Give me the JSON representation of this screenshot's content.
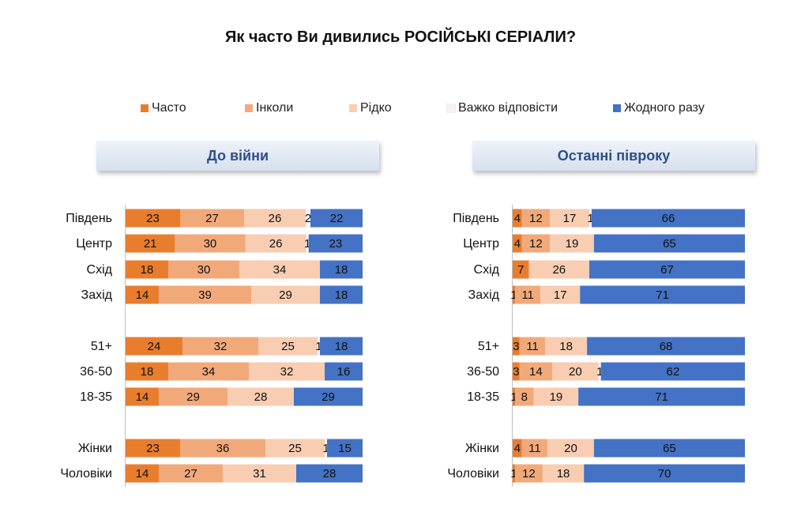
{
  "title": "Як часто Ви дивились РОСІЙСЬКІ СЕРІАЛИ?",
  "legend": [
    {
      "label": "Часто",
      "color": "#e97d2e"
    },
    {
      "label": "Інколи",
      "color": "#f2a97a"
    },
    {
      "label": "Рідко",
      "color": "#f8cdb1"
    },
    {
      "label": "Важко відповісти",
      "color": "#f7f3f0"
    },
    {
      "label": "Жодного разу",
      "color": "#4472c4"
    }
  ],
  "panels": {
    "left": {
      "title": "До війни"
    },
    "right": {
      "title": "Останні півроку"
    }
  },
  "chart_data": [
    {
      "type": "bar",
      "orientation": "horizontal",
      "stacked": true,
      "title": "До війни",
      "categories": [
        "Південь",
        "Центр",
        "Схід",
        "Захід",
        "51+",
        "36-50",
        "18-35",
        "Жінки",
        "Чоловіки"
      ],
      "series": [
        {
          "name": "Часто",
          "values": [
            23,
            21,
            18,
            14,
            24,
            18,
            14,
            23,
            14
          ]
        },
        {
          "name": "Інколи",
          "values": [
            27,
            30,
            30,
            39,
            32,
            34,
            29,
            36,
            27
          ]
        },
        {
          "name": "Рідко",
          "values": [
            26,
            26,
            34,
            29,
            25,
            32,
            28,
            25,
            31
          ]
        },
        {
          "name": "Важко відповісти",
          "values": [
            2,
            1,
            0,
            0,
            1,
            0,
            0,
            1,
            0
          ]
        },
        {
          "name": "Жодного разу",
          "values": [
            22,
            23,
            18,
            18,
            18,
            16,
            29,
            15,
            28
          ]
        }
      ]
    },
    {
      "type": "bar",
      "orientation": "horizontal",
      "stacked": true,
      "title": "Останні півроку",
      "categories": [
        "Південь",
        "Центр",
        "Схід",
        "Захід",
        "51+",
        "36-50",
        "18-35",
        "Жінки",
        "Чоловіки"
      ],
      "series": [
        {
          "name": "Часто",
          "values": [
            4,
            4,
            7,
            1,
            3,
            3,
            1,
            4,
            1
          ]
        },
        {
          "name": "Інколи",
          "values": [
            12,
            12,
            0,
            11,
            11,
            14,
            8,
            11,
            12
          ]
        },
        {
          "name": "Рідко",
          "values": [
            17,
            19,
            26,
            17,
            18,
            20,
            19,
            20,
            18
          ]
        },
        {
          "name": "Важко відповісти",
          "values": [
            1,
            0,
            0,
            0,
            0,
            1,
            0,
            0,
            0
          ]
        },
        {
          "name": "Жодного разу",
          "values": [
            66,
            65,
            67,
            71,
            68,
            62,
            71,
            65,
            70
          ]
        }
      ]
    }
  ]
}
